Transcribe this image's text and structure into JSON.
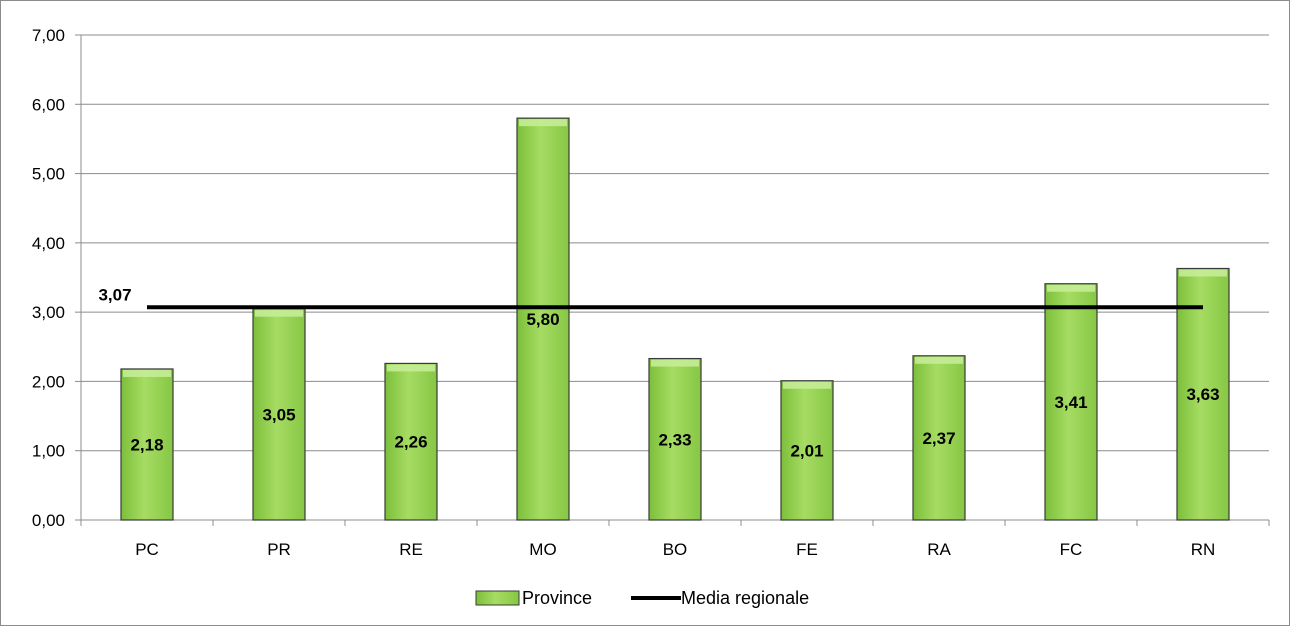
{
  "chart_data": {
    "type": "bar",
    "categories": [
      "PC",
      "PR",
      "RE",
      "MO",
      "BO",
      "FE",
      "RA",
      "FC",
      "RN"
    ],
    "series": [
      {
        "name": "Province",
        "type": "bar",
        "values": [
          2.18,
          3.05,
          2.26,
          5.8,
          2.33,
          2.01,
          2.37,
          3.41,
          3.63
        ],
        "labels": [
          "2,18",
          "3,05",
          "2,26",
          "5,80",
          "2,33",
          "2,01",
          "2,37",
          "3,41",
          "3,63"
        ]
      },
      {
        "name": "Media regionale",
        "type": "line",
        "value": 3.07,
        "label": "3,07"
      }
    ],
    "ylim": [
      0,
      7
    ],
    "yticks": [
      0,
      1,
      2,
      3,
      4,
      5,
      6,
      7
    ],
    "ytick_labels": [
      "0,00",
      "1,00",
      "2,00",
      "3,00",
      "4,00",
      "5,00",
      "6,00",
      "7,00"
    ],
    "title": "",
    "xlabel": "",
    "ylabel": "",
    "grid": true,
    "legend": "bottom",
    "colors": {
      "bar_fill": "#92d050",
      "bar_highlight": "#c8ee9a",
      "bar_border": "#3a3a3a",
      "line": "#000000",
      "grid": "#8c8c8c"
    }
  }
}
